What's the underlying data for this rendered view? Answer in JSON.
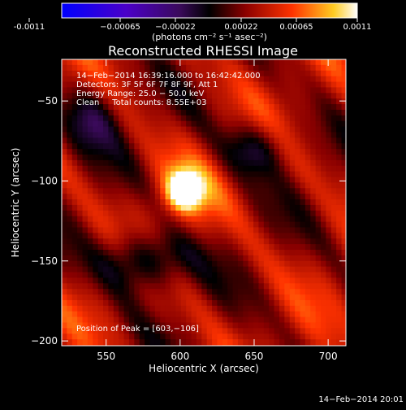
{
  "chart_data": {
    "type": "heatmap",
    "title": "Reconstructed RHESSI Image",
    "xlabel": "Heliocentric X (arcsec)",
    "ylabel": "Heliocentric Y (arcsec)",
    "xlim": [
      520,
      712
    ],
    "ylim": [
      -203,
      -24
    ],
    "xticks": [
      550,
      600,
      650,
      700
    ],
    "yticks": [
      -50,
      -100,
      -150,
      -200
    ],
    "colorbar": {
      "range": [
        -0.0011,
        0.0011
      ],
      "tick_labels": [
        "-0.0011",
        "−0.00065",
        "−0.00022",
        "0.00022",
        "0.00065",
        "0.0011"
      ],
      "label": "(photons cm⁻² s⁻¹ asec⁻²)"
    },
    "annotations": [
      "14−Feb−2014 16:39:16.000 to 16:42:42.000",
      "Detectors: 3F 5F 6F 7F 8F 9F, Att 1",
      "Energy Range: 25.0 − 50.0 keV",
      "Clean     Total counts: 8.55E+03"
    ],
    "peak": {
      "x": 603,
      "y": -106,
      "label": "Position of Peak = [603,−106]"
    },
    "timestamp": "14−Feb−2014 20:01"
  }
}
